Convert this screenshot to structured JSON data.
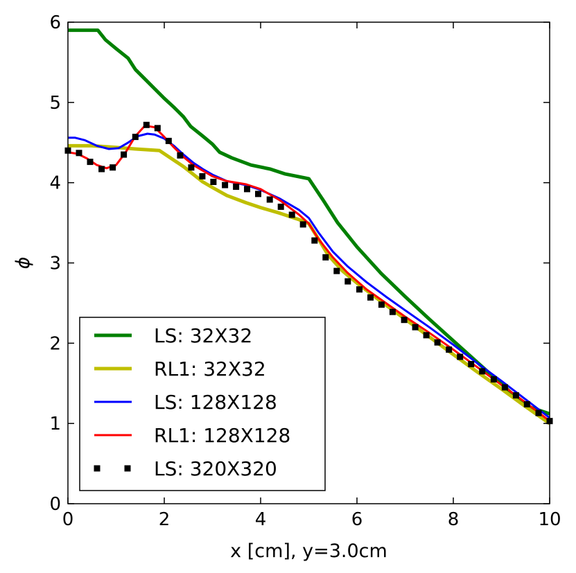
{
  "chart_data": {
    "type": "line",
    "title": "",
    "xlabel": "x [cm], y=3.0cm",
    "ylabel": "ϕ",
    "xlim": [
      0,
      10
    ],
    "ylim": [
      0,
      6
    ],
    "xticks": [
      "0",
      "2",
      "4",
      "6",
      "8",
      "10"
    ],
    "yticks": [
      "0",
      "1",
      "2",
      "3",
      "4",
      "5",
      "6"
    ],
    "grid": false,
    "legend_position": "lower-left",
    "series": [
      {
        "name": "LS: 32X32",
        "color": "#008000",
        "style": "line",
        "x": [
          0,
          0.62,
          0.78,
          1.0,
          1.25,
          1.4,
          1.6,
          1.8,
          2.0,
          2.2,
          2.4,
          2.55,
          2.8,
          3.0,
          3.15,
          3.4,
          3.8,
          4.2,
          4.5,
          5.0,
          5.3,
          5.6,
          6.0,
          6.5,
          7.0,
          7.5,
          8.0,
          8.5,
          9.0,
          9.5,
          10.0
        ],
        "y": [
          5.9,
          5.9,
          5.78,
          5.67,
          5.55,
          5.41,
          5.29,
          5.17,
          5.05,
          4.94,
          4.82,
          4.7,
          4.58,
          4.48,
          4.38,
          4.31,
          4.22,
          4.17,
          4.11,
          4.05,
          3.78,
          3.5,
          3.2,
          2.87,
          2.58,
          2.3,
          2.03,
          1.76,
          1.49,
          1.22,
          1.12
        ]
      },
      {
        "name": "RL1: 32X32",
        "color": "#bfbf00",
        "style": "line",
        "x": [
          0,
          0.5,
          1.0,
          1.4,
          1.9,
          2.4,
          2.8,
          3.0,
          3.3,
          3.7,
          4.0,
          4.4,
          4.8,
          5.0,
          5.2,
          5.4,
          5.7,
          6.0,
          6.5,
          7.0,
          7.5,
          8.0,
          8.5,
          9.0,
          9.5,
          10.0
        ],
        "y": [
          4.46,
          4.46,
          4.44,
          4.42,
          4.4,
          4.2,
          4.01,
          3.94,
          3.84,
          3.75,
          3.69,
          3.62,
          3.54,
          3.49,
          3.3,
          3.1,
          2.9,
          2.75,
          2.52,
          2.3,
          2.08,
          1.86,
          1.64,
          1.43,
          1.21,
          1.0
        ]
      },
      {
        "name": "LS: 128X128",
        "color": "#0000ff",
        "style": "line",
        "x": [
          0,
          0.15,
          0.35,
          0.6,
          0.85,
          1.05,
          1.25,
          1.45,
          1.65,
          1.8,
          2.0,
          2.2,
          2.4,
          2.6,
          2.8,
          3.0,
          3.3,
          3.7,
          4.0,
          4.4,
          4.8,
          5.0,
          5.2,
          5.5,
          5.8,
          6.2,
          6.6,
          7.0,
          7.5,
          8.0,
          8.5,
          9.0,
          9.5,
          10.0
        ],
        "y": [
          4.56,
          4.56,
          4.53,
          4.46,
          4.42,
          4.43,
          4.5,
          4.58,
          4.61,
          4.6,
          4.55,
          4.46,
          4.35,
          4.25,
          4.17,
          4.1,
          4.02,
          3.97,
          3.91,
          3.8,
          3.66,
          3.56,
          3.38,
          3.14,
          2.96,
          2.76,
          2.58,
          2.41,
          2.2,
          1.98,
          1.75,
          1.53,
          1.3,
          1.07
        ]
      },
      {
        "name": "RL1: 128X128",
        "color": "#ff0000",
        "style": "line",
        "x": [
          0,
          0.2,
          0.4,
          0.6,
          0.8,
          1.0,
          1.2,
          1.4,
          1.6,
          1.8,
          2.0,
          2.2,
          2.4,
          2.6,
          2.8,
          3.0,
          3.3,
          3.7,
          4.0,
          4.4,
          4.8,
          5.0,
          5.2,
          5.5,
          5.8,
          6.2,
          6.6,
          7.0,
          7.5,
          8.0,
          8.5,
          9.0,
          9.5,
          10.0
        ],
        "y": [
          4.38,
          4.36,
          4.3,
          4.22,
          4.18,
          4.22,
          4.38,
          4.58,
          4.71,
          4.69,
          4.57,
          4.44,
          4.32,
          4.22,
          4.15,
          4.08,
          4.02,
          3.98,
          3.92,
          3.78,
          3.6,
          3.49,
          3.3,
          3.07,
          2.88,
          2.67,
          2.5,
          2.33,
          2.13,
          1.92,
          1.7,
          1.48,
          1.26,
          1.03
        ]
      },
      {
        "name": "LS: 320X320",
        "color": "#000000",
        "style": "markers",
        "x": [
          0,
          0.23,
          0.46,
          0.7,
          0.93,
          1.16,
          1.4,
          1.63,
          1.86,
          2.09,
          2.33,
          2.56,
          2.79,
          3.02,
          3.26,
          3.49,
          3.72,
          3.95,
          4.19,
          4.42,
          4.65,
          4.88,
          5.12,
          5.35,
          5.58,
          5.81,
          6.05,
          6.28,
          6.51,
          6.74,
          6.98,
          7.21,
          7.44,
          7.67,
          7.91,
          8.14,
          8.37,
          8.6,
          8.84,
          9.07,
          9.3,
          9.53,
          9.77,
          10.0
        ],
        "y": [
          4.4,
          4.37,
          4.26,
          4.17,
          4.19,
          4.35,
          4.57,
          4.72,
          4.68,
          4.52,
          4.34,
          4.19,
          4.08,
          4.01,
          3.97,
          3.95,
          3.92,
          3.86,
          3.79,
          3.7,
          3.6,
          3.48,
          3.28,
          3.07,
          2.9,
          2.77,
          2.67,
          2.57,
          2.48,
          2.39,
          2.29,
          2.2,
          2.1,
          2.01,
          1.92,
          1.83,
          1.74,
          1.65,
          1.55,
          1.45,
          1.35,
          1.24,
          1.13,
          1.03
        ]
      }
    ]
  }
}
